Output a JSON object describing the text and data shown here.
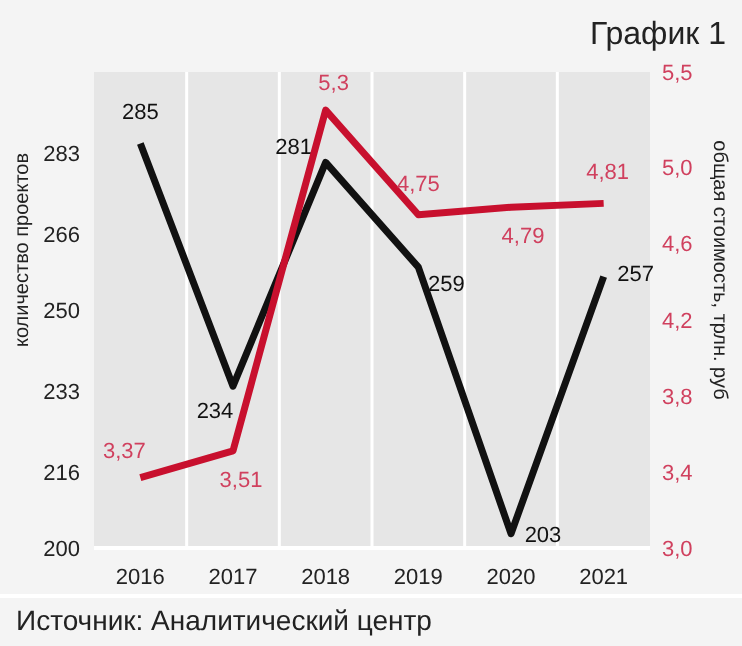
{
  "chart_data": {
    "type": "line",
    "title": "График 1",
    "xlabel": null,
    "ylabel": "количество проектов",
    "y2label": "общая стоимость, трлн. руб",
    "categories": [
      "2016",
      "2017",
      "2018",
      "2019",
      "2020",
      "2021"
    ],
    "series": [
      {
        "name": null,
        "color": "#111111",
        "values": [
          285,
          234,
          281,
          259,
          203,
          257
        ],
        "value_labels": [
          "285",
          "234",
          "281",
          "259",
          "203",
          "257"
        ]
      },
      {
        "name": null,
        "color": "#c8102e",
        "axis": "y2",
        "values": [
          3.37,
          3.51,
          5.3,
          4.75,
          4.79,
          4.81
        ],
        "value_labels": [
          "3,37",
          "3,51",
          "5,3",
          "4,75",
          "4,79",
          "4,81"
        ]
      }
    ],
    "ylim": [
      200,
      300
    ],
    "yticks": [
      200,
      216,
      233,
      250,
      266,
      283
    ],
    "y2lim": [
      3.0,
      5.5
    ],
    "y2ticks": [
      {
        "value": 3.0,
        "label": "3,0"
      },
      {
        "value": 3.4,
        "label": "3,4"
      },
      {
        "value": 3.8,
        "label": "3,8"
      },
      {
        "value": 4.2,
        "label": "4,2"
      },
      {
        "value": 4.6,
        "label": "4,6"
      },
      {
        "value": 5.0,
        "label": "5,0"
      },
      {
        "value": 5.5,
        "label": "5,5"
      }
    ],
    "grid": "x",
    "marker": "none",
    "line_style": "solid",
    "annotations": [
      "Источник: Аналитический центр"
    ]
  }
}
